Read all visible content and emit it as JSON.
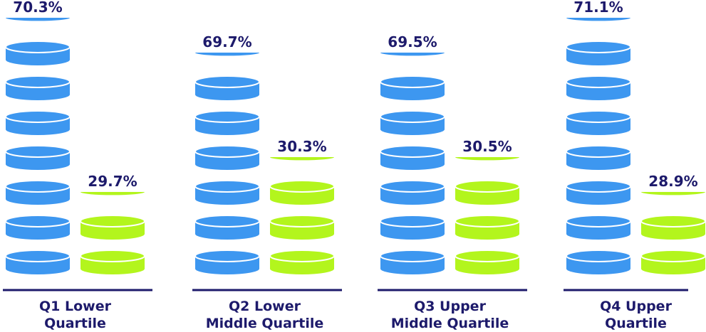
{
  "chart_data": {
    "type": "bar",
    "title": "",
    "xlabel": "",
    "ylabel": "",
    "ylim": [
      0,
      80
    ],
    "grid": false,
    "legend": "none",
    "categories": [
      [
        "Q1 Lower",
        "Quartile"
      ],
      [
        "Q2 Lower",
        "Middle Quartile"
      ],
      [
        "Q3 Upper",
        "Middle Quartile"
      ],
      [
        "Q4 Upper",
        "Quartile"
      ]
    ],
    "series": [
      {
        "values": [
          70.3,
          69.7,
          69.5,
          71.1
        ],
        "labels": [
          "70.3%",
          "69.7%",
          "69.5%",
          "71.1%"
        ]
      },
      {
        "values": [
          29.7,
          30.3,
          30.5,
          28.9
        ],
        "labels": [
          "29.7%",
          "30.3%",
          "30.5%",
          "28.9%"
        ]
      }
    ],
    "colors": {
      "series": [
        "#3d97f0",
        "#b3f51d"
      ],
      "outline": "#ffffff",
      "text": "#1d1a6b",
      "baseline": "#1d1a6b"
    }
  }
}
